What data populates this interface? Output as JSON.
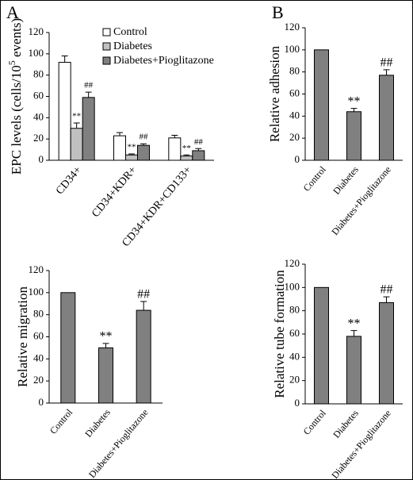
{
  "chart_data": [
    {
      "type": "bar",
      "panel_label": "A",
      "ylabel": {
        "text": "EPC levels (cells/10",
        "superscript": "5",
        "suffix": " events)"
      },
      "categories": [
        "CD34+",
        "CD34+KDR+",
        "CD34+KDR+CD133+"
      ],
      "series": [
        {
          "name": "Control",
          "color": "#ffffff",
          "values": [
            92,
            23,
            21
          ],
          "errors": [
            6,
            3,
            2.5
          ],
          "annotations": [
            null,
            null,
            null
          ]
        },
        {
          "name": "Diabetes",
          "color": "#c0c0c0",
          "values": [
            30,
            5,
            4
          ],
          "errors": [
            5,
            1,
            1
          ],
          "annotations": [
            "**",
            "**",
            "**"
          ]
        },
        {
          "name": "Diabetes+Pioglitazone",
          "color": "#808080",
          "values": [
            59,
            14,
            9
          ],
          "errors": [
            5,
            1.5,
            2
          ],
          "annotations": [
            "##",
            "##",
            "##"
          ]
        }
      ],
      "ylim": [
        0,
        120
      ],
      "yticks": [
        0,
        20,
        40,
        60,
        80,
        100,
        120
      ],
      "legend": "top-right"
    },
    {
      "type": "bar",
      "panel_label": "B",
      "ylabel": {
        "text": "Relative adhesion"
      },
      "categories": [
        "Control",
        "Diabetes",
        "Diabetes+Pioglitazone"
      ],
      "color": "#808080",
      "values": [
        100,
        44,
        77
      ],
      "errors": [
        null,
        3,
        5
      ],
      "annotations": [
        null,
        "**",
        "##"
      ],
      "ylim": [
        0,
        120
      ],
      "yticks": [
        0,
        20,
        40,
        60,
        80,
        100,
        120
      ]
    },
    {
      "type": "bar",
      "ylabel": {
        "text": "Relative migration"
      },
      "categories": [
        "Control",
        "Diabetes",
        "Diabetes+Pioglitazone"
      ],
      "color": "#808080",
      "values": [
        100,
        50,
        84
      ],
      "errors": [
        null,
        4,
        8
      ],
      "annotations": [
        null,
        "**",
        "##"
      ],
      "ylim": [
        0,
        120
      ],
      "yticks": [
        0,
        20,
        40,
        60,
        80,
        100,
        120
      ]
    },
    {
      "type": "bar",
      "ylabel": {
        "text": "Relative tube formation"
      },
      "categories": [
        "Control",
        "Diabetes",
        "Diabetes+Pioglitazone"
      ],
      "color": "#808080",
      "values": [
        100,
        58,
        87
      ],
      "errors": [
        null,
        5,
        5
      ],
      "annotations": [
        null,
        "**",
        "##"
      ],
      "ylim": [
        0,
        120
      ],
      "yticks": [
        0,
        20,
        40,
        60,
        80,
        100,
        120
      ]
    }
  ]
}
